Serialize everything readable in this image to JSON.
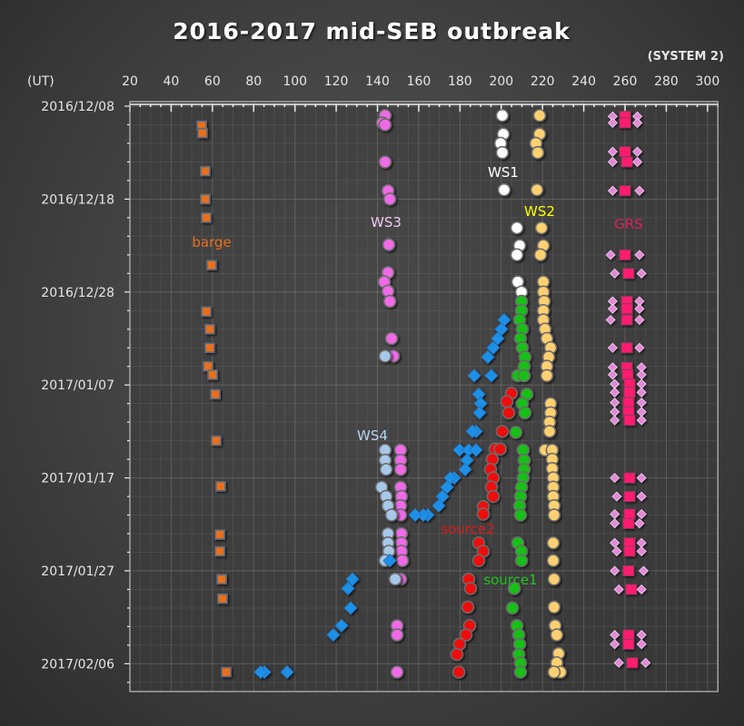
{
  "chart_data": {
    "type": "scatter",
    "title": "2016-2017 mid-SEB outbreak",
    "subtitle": "(SYSTEM 2)",
    "ylabel": "(UT)",
    "xlabel": "",
    "x_ticks": [
      20,
      40,
      60,
      80,
      100,
      120,
      140,
      160,
      180,
      200,
      220,
      240,
      260,
      280,
      300
    ],
    "xlim": [
      20,
      305
    ],
    "y_ticks": [
      {
        "day": 0,
        "label": "2016/12/08"
      },
      {
        "day": 10,
        "label": "2016/12/18"
      },
      {
        "day": 20,
        "label": "2016/12/28"
      },
      {
        "day": 30,
        "label": "2017/01/07"
      },
      {
        "day": 40,
        "label": "2017/01/17"
      },
      {
        "day": 50,
        "label": "2017/01/27"
      },
      {
        "day": 60,
        "label": "2017/02/06"
      }
    ],
    "y_units": "days since 2016/12/08",
    "ylim": [
      -0.5,
      62.8
    ],
    "grid": true,
    "series": [
      {
        "name": "barge",
        "color": "#e8701a",
        "label_color": "#e8701a",
        "marker": "square",
        "points": [
          [
            54.8,
            2.1
          ],
          [
            55.2,
            2.9
          ],
          [
            56.5,
            7.0
          ],
          [
            56.5,
            10.0
          ],
          [
            57.0,
            12.0
          ],
          [
            59.6,
            17.1
          ],
          [
            57.0,
            22.1
          ],
          [
            58.7,
            24.0
          ],
          [
            58.7,
            26.0
          ],
          [
            57.9,
            28.0
          ],
          [
            60.1,
            28.9
          ],
          [
            61.4,
            31.0
          ],
          [
            61.8,
            36.0
          ],
          [
            64.0,
            40.9
          ],
          [
            63.6,
            46.1
          ],
          [
            63.6,
            47.9
          ],
          [
            64.5,
            50.9
          ],
          [
            64.9,
            53.0
          ],
          [
            66.7,
            60.9
          ]
        ]
      },
      {
        "name": "WS3",
        "color": "#f06ae8",
        "label_color": "#f0c8f0",
        "marker": "circle",
        "points": [
          [
            143.7,
            1.0
          ],
          [
            142.4,
            1.8
          ],
          [
            143.7,
            2.0
          ],
          [
            143.7,
            6.0
          ],
          [
            145.1,
            9.1
          ],
          [
            146.0,
            10.0
          ],
          [
            145.5,
            14.9
          ],
          [
            145.1,
            17.9
          ],
          [
            143.3,
            18.9
          ],
          [
            145.1,
            19.9
          ],
          [
            146.0,
            21.0
          ],
          [
            146.8,
            25.0
          ],
          [
            147.7,
            26.9
          ],
          [
            151.2,
            37.0
          ],
          [
            151.2,
            38.1
          ],
          [
            151.2,
            39.1
          ],
          [
            151.2,
            41.0
          ],
          [
            151.6,
            42.0
          ],
          [
            151.2,
            43.0
          ],
          [
            151.2,
            44.0
          ],
          [
            151.6,
            46.0
          ],
          [
            151.6,
            47.0
          ],
          [
            151.6,
            47.9
          ],
          [
            152.1,
            48.9
          ],
          [
            151.2,
            50.9
          ],
          [
            149.5,
            55.9
          ],
          [
            149.5,
            56.9
          ],
          [
            149.5,
            60.9
          ]
        ]
      },
      {
        "name": "WS1",
        "color": "#ffffff",
        "label_color": "#ffffff",
        "marker": "circle",
        "points": [
          [
            200.5,
            1.0
          ],
          [
            201.0,
            3.0
          ],
          [
            199.7,
            4.0
          ],
          [
            200.5,
            5.0
          ],
          [
            201.4,
            9.0
          ],
          [
            207.6,
            13.1
          ],
          [
            208.9,
            15.0
          ],
          [
            207.6,
            16.0
          ],
          [
            208.0,
            18.9
          ],
          [
            209.8,
            20.0
          ]
        ]
      },
      {
        "name": "WS2",
        "color": "#ffd070",
        "label_color": "#ffff00",
        "marker": "circle",
        "points": [
          [
            218.6,
            1.0
          ],
          [
            218.6,
            3.0
          ],
          [
            216.8,
            4.0
          ],
          [
            217.7,
            5.0
          ],
          [
            217.3,
            9.0
          ],
          [
            219.5,
            13.1
          ],
          [
            220.4,
            15.0
          ],
          [
            219.0,
            16.0
          ],
          [
            220.4,
            18.9
          ],
          [
            220.4,
            20.0
          ],
          [
            220.8,
            21.0
          ],
          [
            220.4,
            22.0
          ],
          [
            220.4,
            23.0
          ],
          [
            221.2,
            24.0
          ],
          [
            222.1,
            25.0
          ],
          [
            223.9,
            26.0
          ],
          [
            223.0,
            27.0
          ],
          [
            222.1,
            28.0
          ],
          [
            222.1,
            29.0
          ],
          [
            223.9,
            32.0
          ],
          [
            223.9,
            33.0
          ],
          [
            223.4,
            34.0
          ],
          [
            223.4,
            35.0
          ],
          [
            221.2,
            37.0
          ],
          [
            224.7,
            37.0
          ],
          [
            224.7,
            38.0
          ],
          [
            224.7,
            39.0
          ],
          [
            225.2,
            40.0
          ],
          [
            225.2,
            41.0
          ],
          [
            225.2,
            42.0
          ],
          [
            225.6,
            43.0
          ],
          [
            225.6,
            44.0
          ],
          [
            225.2,
            47.0
          ],
          [
            225.2,
            48.9
          ],
          [
            225.6,
            50.9
          ],
          [
            225.6,
            53.9
          ],
          [
            226.1,
            55.9
          ],
          [
            226.9,
            56.9
          ],
          [
            227.8,
            58.9
          ],
          [
            226.9,
            59.9
          ],
          [
            228.7,
            60.9
          ],
          [
            225.6,
            60.9
          ]
        ]
      },
      {
        "name": "GRS",
        "color": "#ff1a6e",
        "label_color": "#e0205a",
        "marker": "grs-square",
        "edge_color": "#e488d8",
        "points": [
          [
            260.0,
            1.1,
            254,
            266
          ],
          [
            260.0,
            1.8,
            254,
            266
          ],
          [
            260.0,
            4.9,
            254,
            266
          ],
          [
            260.9,
            6.0,
            254,
            266
          ],
          [
            260.0,
            9.1,
            254,
            267
          ],
          [
            260.0,
            16.0,
            253,
            267
          ],
          [
            261.7,
            18.0,
            255,
            268
          ],
          [
            260.9,
            21.0,
            254,
            267
          ],
          [
            260.9,
            21.8,
            254,
            267
          ],
          [
            260.9,
            23.0,
            253,
            267
          ],
          [
            260.9,
            26.0,
            254,
            267
          ],
          [
            260.9,
            28.1,
            254,
            268
          ],
          [
            261.3,
            28.9,
            254,
            268
          ],
          [
            262.2,
            29.9,
            255,
            268
          ],
          [
            262.2,
            30.8,
            255,
            268
          ],
          [
            261.7,
            31.9,
            255,
            268
          ],
          [
            261.7,
            32.9,
            255,
            268
          ],
          [
            262.2,
            33.8,
            255,
            268
          ],
          [
            262.2,
            40.0,
            255,
            268
          ],
          [
            262.2,
            42.0,
            256,
            268
          ],
          [
            262.2,
            43.9,
            255,
            268
          ],
          [
            261.7,
            44.9,
            255,
            267
          ],
          [
            262.2,
            47.0,
            255,
            268
          ],
          [
            262.2,
            47.9,
            256,
            268
          ],
          [
            261.7,
            50.0,
            255,
            269
          ],
          [
            263.0,
            52.0,
            257,
            268
          ],
          [
            261.7,
            56.9,
            255,
            268
          ],
          [
            261.7,
            57.9,
            255,
            268
          ],
          [
            263.5,
            59.9,
            257,
            270
          ]
        ]
      },
      {
        "name": "WS4",
        "color": "#a8c8ea",
        "label_color": "#b8d4f0",
        "marker": "circle",
        "points": [
          [
            143.7,
            26.9
          ],
          [
            143.7,
            37.0
          ],
          [
            143.7,
            38.1
          ],
          [
            144.2,
            39.1
          ],
          [
            142.0,
            41.0
          ],
          [
            144.2,
            42.0
          ],
          [
            145.1,
            43.0
          ],
          [
            146.8,
            44.0
          ],
          [
            145.1,
            46.0
          ],
          [
            145.1,
            47.0
          ],
          [
            145.5,
            47.9
          ],
          [
            143.7,
            48.9
          ],
          [
            148.6,
            50.9
          ]
        ]
      },
      {
        "name": "source2",
        "color": "#ee1010",
        "label_color": "#dd1a1a",
        "marker": "circle",
        "points": [
          [
            204.9,
            30.9
          ],
          [
            202.7,
            31.8
          ],
          [
            203.6,
            33.0
          ],
          [
            200.5,
            35.0
          ],
          [
            197.0,
            36.9
          ],
          [
            199.5,
            36.9
          ],
          [
            195.7,
            38.0
          ],
          [
            194.8,
            39.1
          ],
          [
            196.1,
            40.0
          ],
          [
            195.2,
            41.0
          ],
          [
            196.1,
            42.0
          ],
          [
            191.3,
            43.1
          ],
          [
            191.3,
            43.9
          ],
          [
            189.1,
            47.0
          ],
          [
            191.3,
            47.9
          ],
          [
            189.1,
            48.9
          ],
          [
            184.2,
            50.9
          ],
          [
            185.1,
            51.9
          ],
          [
            183.8,
            53.9
          ],
          [
            184.7,
            55.9
          ],
          [
            182.9,
            56.9
          ],
          [
            179.8,
            57.9
          ],
          [
            178.5,
            59.0
          ],
          [
            179.4,
            60.9
          ]
        ]
      },
      {
        "name": "source1",
        "color": "#18c018",
        "label_color": "#20c020",
        "marker": "circle",
        "points": [
          [
            209.8,
            21.0
          ],
          [
            209.8,
            22.0
          ],
          [
            208.9,
            23.0
          ],
          [
            210.2,
            24.0
          ],
          [
            209.3,
            25.0
          ],
          [
            210.2,
            26.0
          ],
          [
            211.5,
            27.0
          ],
          [
            211.1,
            28.0
          ],
          [
            208.0,
            29.0
          ],
          [
            211.1,
            29.0
          ],
          [
            212.4,
            31.0
          ],
          [
            210.2,
            32.0
          ],
          [
            211.5,
            33.0
          ],
          [
            207.1,
            35.1
          ],
          [
            210.6,
            37.0
          ],
          [
            211.1,
            38.1
          ],
          [
            211.1,
            39.1
          ],
          [
            210.6,
            40.0
          ],
          [
            209.8,
            41.0
          ],
          [
            209.3,
            42.0
          ],
          [
            208.9,
            43.0
          ],
          [
            209.3,
            44.0
          ],
          [
            208.0,
            47.0
          ],
          [
            209.8,
            47.9
          ],
          [
            209.8,
            48.9
          ],
          [
            206.3,
            51.9
          ],
          [
            205.4,
            54.0
          ],
          [
            207.6,
            55.9
          ],
          [
            208.5,
            56.9
          ],
          [
            208.9,
            57.9
          ],
          [
            208.5,
            59.0
          ],
          [
            209.3,
            59.9
          ],
          [
            209.3,
            60.9
          ]
        ]
      },
      {
        "name": "",
        "color": "#1e90e8",
        "label_color": "#1e90e8",
        "marker": "diamond",
        "points": [
          [
            201.4,
            23.0
          ],
          [
            200.1,
            24.0
          ],
          [
            198.3,
            25.0
          ],
          [
            196.1,
            26.0
          ],
          [
            193.5,
            27.0
          ],
          [
            186.9,
            29.0
          ],
          [
            195.2,
            29.0
          ],
          [
            189.1,
            31.0
          ],
          [
            190.0,
            32.0
          ],
          [
            189.5,
            33.0
          ],
          [
            187.8,
            35.0
          ],
          [
            186.0,
            35.0
          ],
          [
            179.8,
            37.0
          ],
          [
            184.2,
            37.0
          ],
          [
            187.8,
            37.0
          ],
          [
            183.4,
            38.1
          ],
          [
            182.5,
            39.1
          ],
          [
            177.2,
            40.0
          ],
          [
            175.4,
            40.0
          ],
          [
            173.7,
            41.0
          ],
          [
            171.5,
            42.0
          ],
          [
            169.7,
            43.0
          ],
          [
            164.4,
            44.0
          ],
          [
            162.2,
            44.0
          ],
          [
            158.3,
            44.0
          ],
          [
            146.0,
            48.9
          ],
          [
            127.9,
            50.9
          ],
          [
            125.7,
            51.9
          ],
          [
            127.0,
            54.0
          ],
          [
            122.6,
            55.9
          ],
          [
            118.6,
            56.9
          ],
          [
            85.2,
            60.9
          ],
          [
            83.4,
            60.9
          ],
          [
            96.2,
            60.9
          ]
        ]
      }
    ]
  }
}
